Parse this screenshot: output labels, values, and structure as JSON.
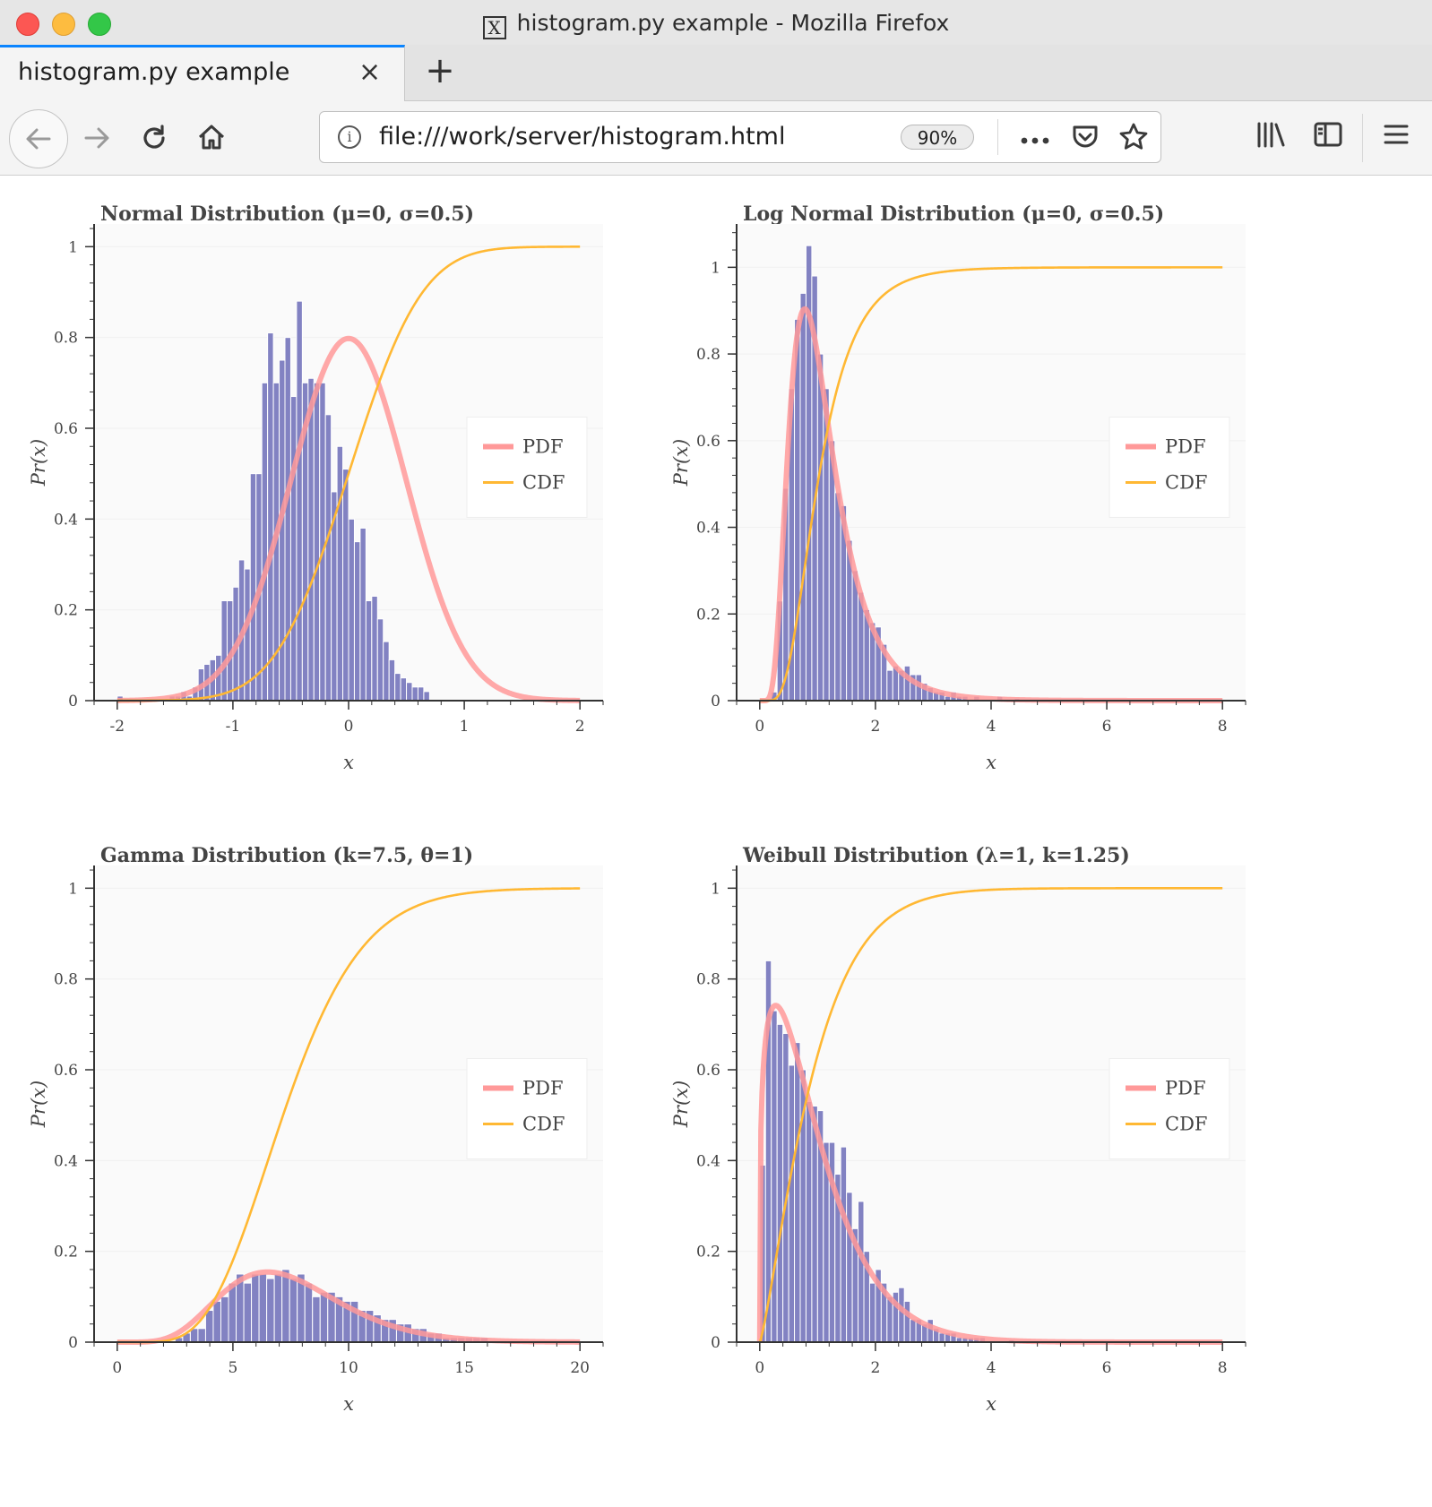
{
  "window": {
    "title": "histogram.py example - Mozilla Firefox",
    "x_badge": "X"
  },
  "tab": {
    "label": "histogram.py example",
    "close": "×",
    "new_tab": "+"
  },
  "nav": {
    "url": "file:///work/server/histogram.html",
    "zoom": "90%",
    "icons": [
      "back-icon",
      "forward-icon",
      "reload-icon",
      "home-icon",
      "info-icon",
      "more-icon",
      "pocket-icon",
      "bookmark-star-icon",
      "library-icon",
      "sidebar-icon",
      "menu-icon"
    ]
  },
  "colors": {
    "bars": "#7b7bbf",
    "pdf": "#ff9999",
    "cdf": "#ffb833",
    "plot_bg": "#fafafa"
  },
  "legend": {
    "pdf": "PDF",
    "cdf": "CDF"
  },
  "chart_data": [
    {
      "type": "bar",
      "title": "Normal Distribution (μ=0, σ=0.5)",
      "xlabel": "x",
      "ylabel": "Pr(x)",
      "xlim": [
        -2.2,
        2.2
      ],
      "ylim": [
        0,
        1.05
      ],
      "xticks": [
        -2,
        -1,
        0,
        1,
        2
      ],
      "xtick_labels": [
        "-2",
        "-1",
        "0",
        "1",
        "2"
      ],
      "yticks": [
        0,
        0.2,
        0.4,
        0.6,
        0.8,
        1
      ],
      "ytick_labels": [
        "0",
        "0.2",
        "0.4",
        "0.6",
        "0.8",
        "1"
      ],
      "bins": {
        "start": -2.0,
        "width": 0.05,
        "values": [
          0.01,
          0,
          0,
          0,
          0,
          0,
          0,
          0,
          0,
          0.01,
          0.01,
          0.02,
          0.01,
          0.03,
          0.07,
          0.08,
          0.09,
          0.1,
          0.22,
          0.22,
          0.25,
          0.31,
          0.29,
          0.5,
          0.5,
          0.7,
          0.81,
          0.7,
          0.75,
          0.8,
          0.67,
          0.88,
          0.7,
          0.71,
          0.7,
          0.7,
          0.63,
          0.46,
          0.56,
          0.51,
          0.4,
          0.35,
          0.38,
          0.22,
          0.23,
          0.18,
          0.13,
          0.09,
          0.06,
          0.05,
          0.04,
          0.03,
          0.03,
          0.02
        ]
      },
      "pdf": {
        "dist": "normal",
        "mu": 0,
        "sigma": 0.5,
        "x_range": [
          -2,
          2
        ]
      },
      "cdf": {
        "dist": "normal",
        "mu": 0,
        "sigma": 0.5,
        "x_range": [
          -2,
          2
        ]
      },
      "legend_entries": [
        "PDF",
        "CDF"
      ],
      "legend_position": "right"
    },
    {
      "type": "bar",
      "title": "Log Normal Distribution (μ=0, σ=0.5)",
      "xlabel": "x",
      "ylabel": "Pr(x)",
      "xlim": [
        -0.4,
        8.4
      ],
      "ylim": [
        0,
        1.1
      ],
      "xticks": [
        0,
        2,
        4,
        6,
        8
      ],
      "xtick_labels": [
        "0",
        "2",
        "4",
        "6",
        "8"
      ],
      "yticks": [
        0,
        0.2,
        0.4,
        0.6,
        0.8,
        1
      ],
      "ytick_labels": [
        "0",
        "0.2",
        "0.4",
        "0.6",
        "0.8",
        "1"
      ],
      "bins": {
        "start": 0.1,
        "width": 0.1,
        "values": [
          0,
          0.02,
          0.23,
          0.49,
          0.72,
          0.88,
          0.94,
          1.05,
          0.98,
          0.8,
          0.72,
          0.6,
          0.48,
          0.45,
          0.37,
          0.3,
          0.25,
          0.21,
          0.18,
          0.17,
          0.13,
          0.07,
          0.08,
          0.07,
          0.08,
          0.06,
          0.06,
          0.04,
          0.03,
          0.02,
          0.02,
          0.01,
          0.02,
          0.01,
          0.01,
          0,
          0.01,
          0,
          0,
          0,
          0.01,
          0,
          0,
          0.005
        ]
      },
      "pdf": {
        "dist": "lognormal",
        "mu": 0,
        "sigma": 0.5,
        "x_range": [
          0,
          8
        ]
      },
      "cdf": {
        "dist": "lognormal",
        "mu": 0,
        "sigma": 0.5,
        "x_range": [
          0,
          8
        ]
      },
      "legend_entries": [
        "PDF",
        "CDF"
      ],
      "legend_position": "right"
    },
    {
      "type": "bar",
      "title": "Gamma Distribution (k=7.5, θ=1)",
      "xlabel": "x",
      "ylabel": "Pr(x)",
      "xlim": [
        -1,
        21
      ],
      "ylim": [
        0,
        1.05
      ],
      "xticks": [
        0,
        5,
        10,
        15,
        20
      ],
      "xtick_labels": [
        "0",
        "5",
        "10",
        "15",
        "20"
      ],
      "yticks": [
        0,
        0.2,
        0.4,
        0.6,
        0.8,
        1
      ],
      "ytick_labels": [
        "0",
        "0.2",
        "0.4",
        "0.6",
        "0.8",
        "1"
      ],
      "bins": {
        "start": 2.5,
        "width": 0.33,
        "values": [
          0.01,
          0.02,
          0.03,
          0.03,
          0.07,
          0.09,
          0.1,
          0.13,
          0.15,
          0.13,
          0.15,
          0.15,
          0.14,
          0.15,
          0.16,
          0.14,
          0.15,
          0.13,
          0.1,
          0.11,
          0.11,
          0.1,
          0.09,
          0.09,
          0.07,
          0.07,
          0.06,
          0.05,
          0.05,
          0.04,
          0.04,
          0.03,
          0.03,
          0.02,
          0.02,
          0.01,
          0.01,
          0.01,
          0.01,
          0.01,
          0.01
        ]
      },
      "pdf": {
        "dist": "gamma",
        "k": 7.5,
        "theta": 1,
        "x_range": [
          0,
          20
        ]
      },
      "cdf": {
        "dist": "gamma",
        "k": 7.5,
        "theta": 1,
        "x_range": [
          0,
          20
        ]
      },
      "legend_entries": [
        "PDF",
        "CDF"
      ],
      "legend_position": "right"
    },
    {
      "type": "bar",
      "title": "Weibull Distribution (λ=1, k=1.25)",
      "xlabel": "x",
      "ylabel": "Pr(x)",
      "xlim": [
        -0.4,
        8.4
      ],
      "ylim": [
        0,
        1.05
      ],
      "xticks": [
        0,
        2,
        4,
        6,
        8
      ],
      "xtick_labels": [
        "0",
        "2",
        "4",
        "6",
        "8"
      ],
      "yticks": [
        0,
        0.2,
        0.4,
        0.6,
        0.8,
        1
      ],
      "ytick_labels": [
        "0",
        "0.2",
        "0.4",
        "0.6",
        "0.8",
        "1"
      ],
      "bins": {
        "start": 0.0,
        "width": 0.1,
        "values": [
          0.39,
          0.84,
          0.73,
          0.7,
          0.68,
          0.61,
          0.66,
          0.6,
          0.53,
          0.52,
          0.51,
          0.44,
          0.44,
          0.37,
          0.43,
          0.33,
          0.25,
          0.31,
          0.2,
          0.13,
          0.16,
          0.13,
          0.1,
          0.11,
          0.12,
          0.09,
          0.05,
          0.05,
          0.04,
          0.05,
          0.03,
          0.02,
          0.02,
          0.02,
          0.01,
          0.01,
          0.01,
          0.01,
          0.01,
          0,
          0,
          0,
          0,
          0.005
        ]
      },
      "pdf": {
        "dist": "weibull",
        "lambda": 1,
        "k": 1.25,
        "x_range": [
          0,
          8
        ]
      },
      "cdf": {
        "dist": "weibull",
        "lambda": 1,
        "k": 1.25,
        "x_range": [
          0,
          8
        ]
      },
      "legend_entries": [
        "PDF",
        "CDF"
      ],
      "legend_position": "right"
    }
  ]
}
